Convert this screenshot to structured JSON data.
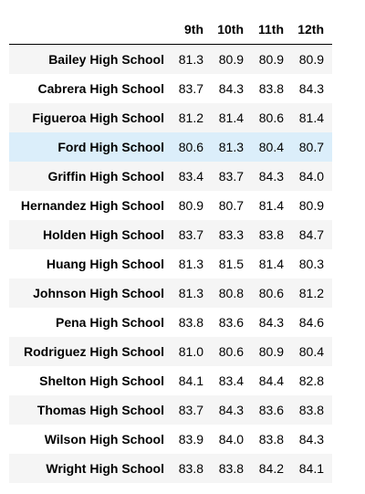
{
  "table": {
    "columns": [
      "9th",
      "10th",
      "11th",
      "12th"
    ],
    "rows": [
      {
        "school": "Bailey High School",
        "values": [
          "81.3",
          "80.9",
          "80.9",
          "80.9"
        ]
      },
      {
        "school": "Cabrera High School",
        "values": [
          "83.7",
          "84.3",
          "83.8",
          "84.3"
        ]
      },
      {
        "school": "Figueroa High School",
        "values": [
          "81.2",
          "81.4",
          "80.6",
          "81.4"
        ]
      },
      {
        "school": "Ford High School",
        "values": [
          "80.6",
          "81.3",
          "80.4",
          "80.7"
        ]
      },
      {
        "school": "Griffin High School",
        "values": [
          "83.4",
          "83.7",
          "84.3",
          "84.0"
        ]
      },
      {
        "school": "Hernandez High School",
        "values": [
          "80.9",
          "80.7",
          "81.4",
          "80.9"
        ]
      },
      {
        "school": "Holden High School",
        "values": [
          "83.7",
          "83.3",
          "83.8",
          "84.7"
        ]
      },
      {
        "school": "Huang High School",
        "values": [
          "81.3",
          "81.5",
          "81.4",
          "80.3"
        ]
      },
      {
        "school": "Johnson High School",
        "values": [
          "81.3",
          "80.8",
          "80.6",
          "81.2"
        ]
      },
      {
        "school": "Pena High School",
        "values": [
          "83.8",
          "83.6",
          "84.3",
          "84.6"
        ]
      },
      {
        "school": "Rodriguez High School",
        "values": [
          "81.0",
          "80.6",
          "80.9",
          "80.4"
        ]
      },
      {
        "school": "Shelton High School",
        "values": [
          "84.1",
          "83.4",
          "84.4",
          "82.8"
        ]
      },
      {
        "school": "Thomas High School",
        "values": [
          "83.7",
          "84.3",
          "83.6",
          "83.8"
        ]
      },
      {
        "school": "Wilson High School",
        "values": [
          "83.9",
          "84.0",
          "83.8",
          "84.3"
        ]
      },
      {
        "school": "Wright High School",
        "values": [
          "83.8",
          "83.8",
          "84.2",
          "84.1"
        ]
      }
    ],
    "highlighted_row": "Ford High School",
    "colors": {
      "stripe": "#f5f5f5",
      "highlight": "#dbeefa"
    }
  }
}
